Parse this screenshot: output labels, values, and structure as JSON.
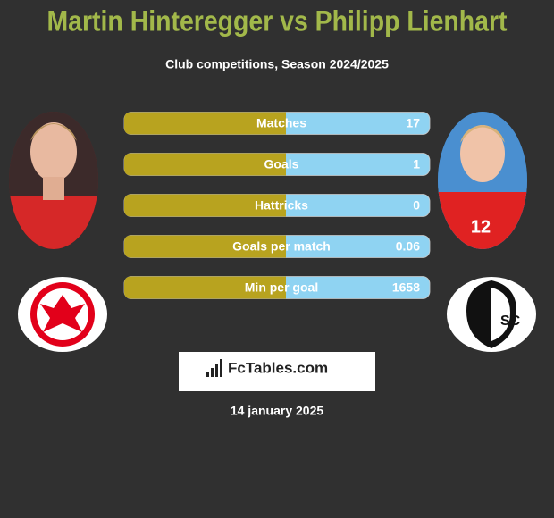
{
  "header": {
    "title": "Martin Hinteregger vs Philipp Lienhart",
    "subtitle": "Club competitions, Season 2024/2025"
  },
  "rows": [
    {
      "label": "Matches",
      "value": 17
    },
    {
      "label": "Goals",
      "value": 1
    },
    {
      "label": "Hattricks",
      "value": 0
    },
    {
      "label": "Goals per match",
      "value": 0.06
    },
    {
      "label": "Min per goal",
      "value": 1658
    }
  ],
  "footer": {
    "logo": "FcTables.com",
    "date": "14 january 2025"
  }
}
